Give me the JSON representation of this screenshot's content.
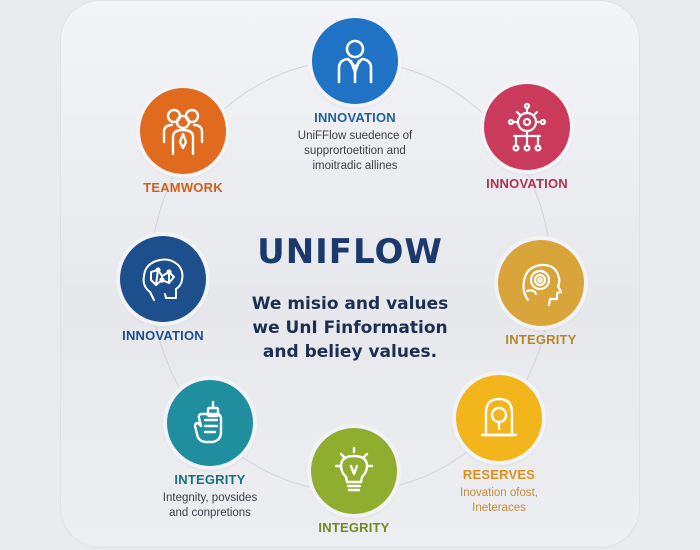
{
  "title": "UNIFLOW",
  "subtitle_lines": [
    "We misio and values",
    "we UnI Finformation",
    "and beliey values."
  ],
  "nodes": [
    {
      "id": "top",
      "label": "INNOVATION",
      "desc": [
        "UniFFlow suedence of",
        "supprortoetition and",
        "imoitradic allines"
      ],
      "color": "#1f72c4",
      "label_color": "#1f5f9e",
      "icon": "person-icon"
    },
    {
      "id": "top-left",
      "label": "TEAMWORK",
      "desc": [],
      "color": "#e06a1e",
      "label_color": "#d35f17",
      "icon": "team-icon"
    },
    {
      "id": "top-right",
      "label": "INNOVATION",
      "desc": [],
      "color": "#c93a5b",
      "label_color": "#b3304f",
      "icon": "network-icon"
    },
    {
      "id": "left",
      "label": "INNOVATION",
      "desc": [],
      "color": "#1d4f8c",
      "label_color": "#1d4f8c",
      "icon": "brain-icon"
    },
    {
      "id": "right",
      "label": "INTEGRITY",
      "desc": [],
      "color": "#d9a43a",
      "label_color": "#b8862a",
      "icon": "head-gear-icon"
    },
    {
      "id": "bottom-left",
      "label": "INTEGRITY",
      "desc": [
        "Integnity, povsides",
        "and conpretions"
      ],
      "color": "#1f8fa0",
      "label_color": "#17707e",
      "icon": "hand-icon"
    },
    {
      "id": "bottom",
      "label": "INTEGRITY",
      "desc": [],
      "color": "#8fae2f",
      "label_color": "#6f8a22",
      "icon": "lightbulb-icon"
    },
    {
      "id": "bottom-right",
      "label": "RESERVES",
      "desc": [
        "Inovation ofost,",
        "Ineteraces"
      ],
      "color": "#f2b51c",
      "label_color": "#e0901a",
      "icon": "lock-icon"
    }
  ]
}
